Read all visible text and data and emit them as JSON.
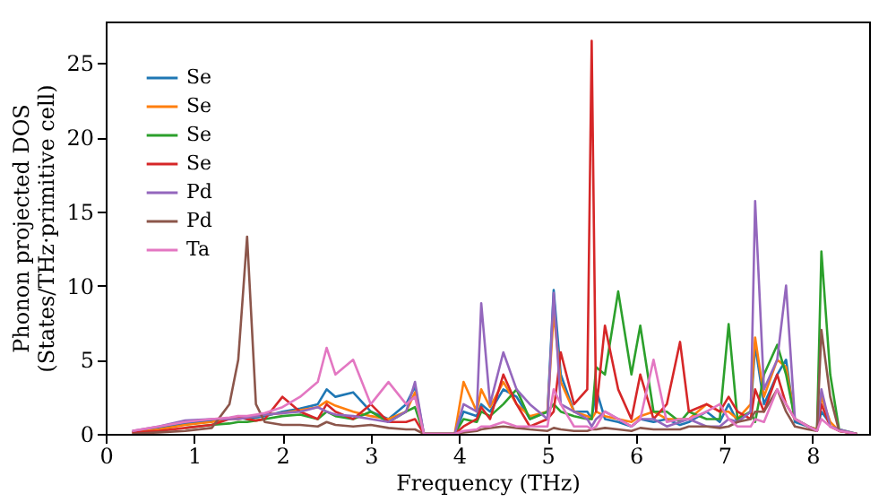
{
  "chart_data": {
    "type": "line",
    "xlabel": "Frequency (THz)",
    "ylabel": "Phonon projected DOS\n(States/THz·primitive cell)",
    "xlim": [
      0,
      8.64
    ],
    "ylim": [
      0,
      27.8
    ],
    "xticks": [
      0,
      1,
      2,
      3,
      4,
      5,
      6,
      7,
      8
    ],
    "yticks": [
      0,
      5,
      10,
      15,
      20,
      25
    ],
    "grid": false,
    "legend": "top left",
    "line_style": "solid",
    "marker": "none",
    "x": [
      0.3,
      0.6,
      0.9,
      1.2,
      1.4,
      1.5,
      1.6,
      1.7,
      1.8,
      2.0,
      2.2,
      2.4,
      2.5,
      2.6,
      2.8,
      3.0,
      3.2,
      3.4,
      3.5,
      3.6,
      3.95,
      4.05,
      4.2,
      4.25,
      4.35,
      4.5,
      4.65,
      4.8,
      5.0,
      5.07,
      5.15,
      5.3,
      5.45,
      5.5,
      5.55,
      5.65,
      5.8,
      5.95,
      6.05,
      6.2,
      6.35,
      6.5,
      6.6,
      6.8,
      6.95,
      7.05,
      7.15,
      7.3,
      7.35,
      7.45,
      7.6,
      7.7,
      7.8,
      7.95,
      8.05,
      8.1,
      8.2,
      8.3,
      8.5
    ],
    "series": [
      {
        "name": "Se",
        "color": "#1f77b4",
        "values": [
          0.1,
          0.4,
          0.7,
          0.9,
          1.0,
          1.1,
          1.0,
          1.1,
          1.2,
          1.5,
          1.7,
          2.0,
          3.0,
          2.5,
          2.8,
          1.5,
          1.0,
          2.0,
          3.2,
          0,
          0,
          1.5,
          1.2,
          2.0,
          1.5,
          3.0,
          2.5,
          1.0,
          1.5,
          9.7,
          4.0,
          1.5,
          1.5,
          1.0,
          3.0,
          1.0,
          0.8,
          0.5,
          1.0,
          0.8,
          1.0,
          0.6,
          0.8,
          1.5,
          0.8,
          2.0,
          0.8,
          1.5,
          6.0,
          2.0,
          4.0,
          5.0,
          0.8,
          0.5,
          0.3,
          1.5,
          0.7,
          null,
          null
        ]
      },
      {
        "name": "Se",
        "color": "#ff7f0e",
        "values": [
          0.1,
          0.3,
          0.6,
          0.8,
          1.0,
          1.0,
          1.1,
          1.2,
          1.3,
          1.4,
          1.6,
          1.8,
          2.2,
          1.9,
          1.5,
          1.2,
          1.0,
          1.5,
          2.8,
          0,
          0,
          3.5,
          1.5,
          3.0,
          1.8,
          3.5,
          2.0,
          1.2,
          1.5,
          8.2,
          3.5,
          1.5,
          1.2,
          1.0,
          1.5,
          1.2,
          1.0,
          0.8,
          1.2,
          1.5,
          1.0,
          1.0,
          1.0,
          2.0,
          1.5,
          1.5,
          1.0,
          2.0,
          6.5,
          2.5,
          5.0,
          4.5,
          1.0,
          0.5,
          0.3,
          2.5,
          0.8,
          0.2,
          0
        ]
      },
      {
        "name": "Se",
        "color": "#2ca02c",
        "values": [
          null,
          null,
          0.4,
          0.6,
          0.7,
          0.8,
          0.8,
          0.9,
          1.0,
          1.2,
          1.3,
          1.0,
          1.5,
          1.2,
          1.0,
          1.5,
          0.8,
          1.5,
          1.8,
          0,
          0,
          1.0,
          0.8,
          1.5,
          1.2,
          2.0,
          3.0,
          1.0,
          1.5,
          2.0,
          1.5,
          1.2,
          1.0,
          1.0,
          4.5,
          4.0,
          9.6,
          4.0,
          7.3,
          1.5,
          1.5,
          0.8,
          1.5,
          1.0,
          1.0,
          7.4,
          1.0,
          1.5,
          0.8,
          4.0,
          6.0,
          4.0,
          1.0,
          0.5,
          0.2,
          12.3,
          4.0,
          0.3,
          0
        ]
      },
      {
        "name": "Se",
        "color": "#d62728",
        "values": [
          0.1,
          0.2,
          0.4,
          0.6,
          1.0,
          1.2,
          1.0,
          0.9,
          1.0,
          2.5,
          1.5,
          1.0,
          2.0,
          1.5,
          1.0,
          2.0,
          0.8,
          0.8,
          1.0,
          0,
          0,
          0.5,
          1.0,
          1.8,
          1.0,
          4.0,
          2.0,
          0.5,
          1.0,
          1.5,
          5.5,
          2.0,
          3.0,
          26.5,
          1.5,
          7.3,
          3.0,
          1.0,
          4.0,
          1.0,
          2.0,
          6.2,
          1.5,
          2.0,
          1.5,
          2.5,
          1.5,
          1.0,
          3.0,
          1.5,
          4.0,
          2.0,
          1.0,
          0.5,
          0.2,
          2.0,
          0.5,
          0.2,
          0
        ]
      },
      {
        "name": "Pd",
        "color": "#9467bd",
        "values": [
          0.2,
          0.5,
          0.9,
          1.0,
          1.0,
          1.0,
          1.1,
          1.2,
          1.3,
          1.4,
          1.5,
          1.8,
          1.5,
          1.3,
          1.2,
          1.0,
          0.8,
          1.5,
          3.5,
          0,
          0,
          2.0,
          1.5,
          8.8,
          2.0,
          5.5,
          3.0,
          2.0,
          1.0,
          9.5,
          2.0,
          1.5,
          1.0,
          0.5,
          1.0,
          1.5,
          1.0,
          0.5,
          1.0,
          1.0,
          0.5,
          0.8,
          1.0,
          0.5,
          0.5,
          1.0,
          0.8,
          1.5,
          15.7,
          3.0,
          5.0,
          10.0,
          1.0,
          0.5,
          0.2,
          3.0,
          0.5,
          0.3,
          0
        ]
      },
      {
        "name": "Pd",
        "color": "#8c564b",
        "values": [
          0.0,
          0.1,
          0.2,
          0.4,
          2.0,
          5.0,
          13.3,
          2.0,
          0.8,
          0.6,
          0.6,
          0.5,
          0.8,
          0.6,
          0.5,
          0.6,
          0.4,
          0.3,
          0.3,
          0,
          0,
          0.1,
          0.2,
          0.3,
          0.4,
          0.5,
          0.4,
          0.3,
          0.2,
          0.4,
          0.3,
          0.2,
          0.2,
          0.3,
          0.3,
          0.4,
          0.3,
          0.2,
          0.4,
          0.3,
          0.3,
          0.3,
          0.5,
          0.5,
          0.4,
          0.5,
          0.8,
          1.0,
          1.5,
          1.5,
          3.0,
          1.5,
          0.5,
          0.3,
          0.2,
          7.0,
          2.5,
          0.2,
          0
        ]
      },
      {
        "name": "Ta",
        "color": "#e377c2",
        "values": [
          0.2,
          0.5,
          0.8,
          1.0,
          1.1,
          1.2,
          1.2,
          1.3,
          1.4,
          1.8,
          2.5,
          3.5,
          5.8,
          4.0,
          5.0,
          2.0,
          3.5,
          2.0,
          2.5,
          0,
          0,
          0.2,
          0.3,
          0.5,
          0.5,
          0.8,
          0.5,
          0.5,
          0.5,
          3.0,
          2.0,
          0.5,
          0.5,
          0.3,
          0.5,
          1.5,
          1.0,
          0.5,
          1.0,
          5.0,
          0.8,
          1.0,
          1.0,
          1.5,
          2.0,
          1.0,
          0.5,
          0.5,
          1.0,
          0.8,
          3.0,
          2.0,
          1.0,
          0.5,
          0.2,
          1.0,
          0.5,
          0.2,
          0
        ]
      }
    ]
  }
}
